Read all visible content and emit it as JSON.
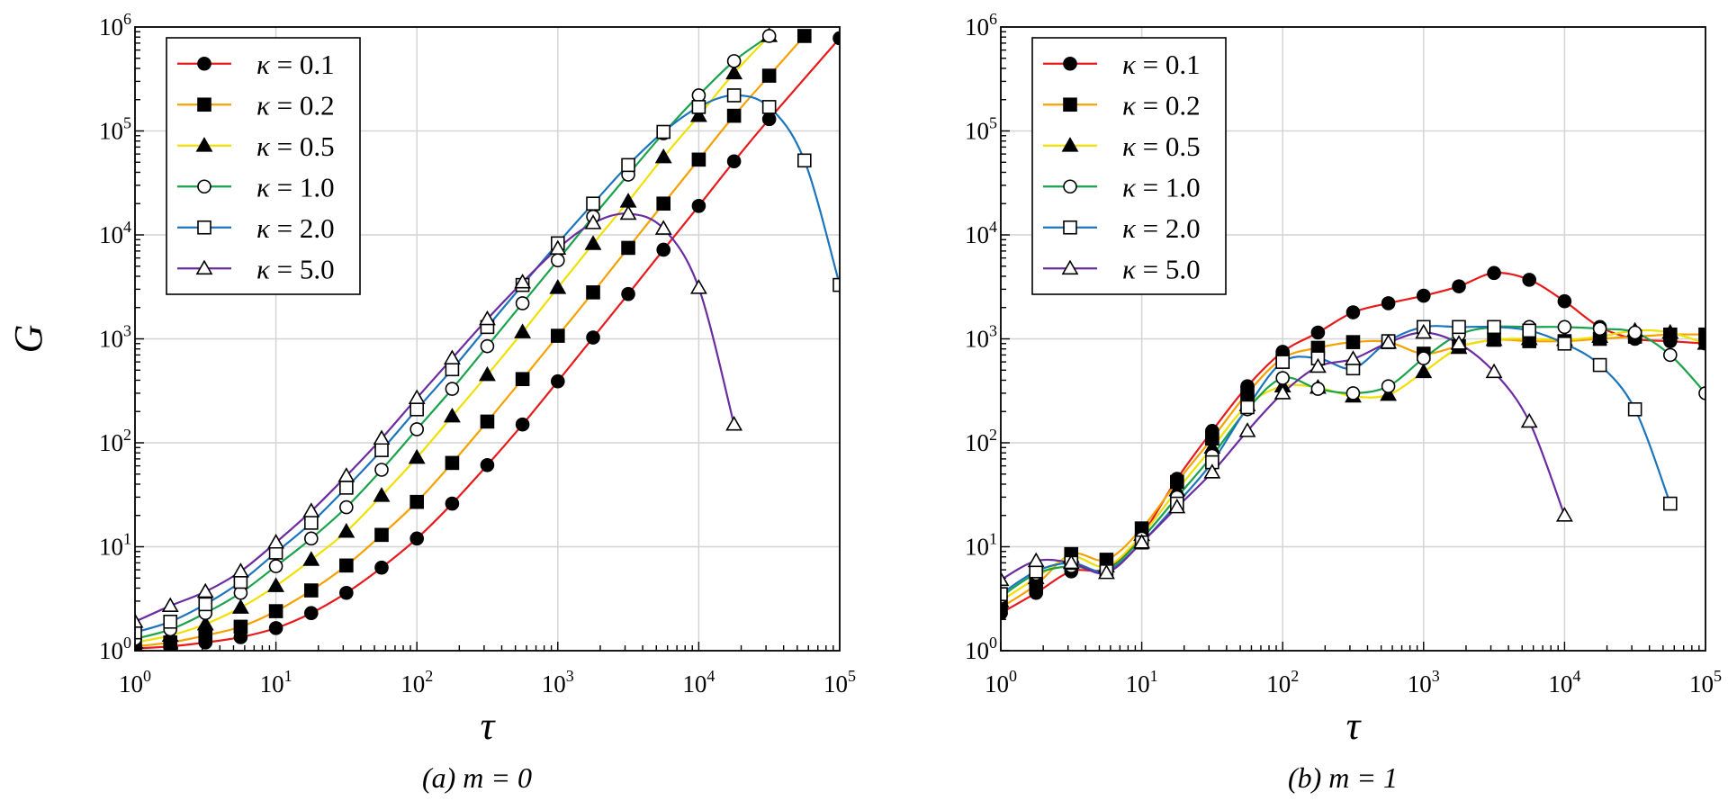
{
  "chart_data": [
    {
      "type": "line",
      "title": "",
      "caption": "(a) m = 0",
      "xlabel": "τ",
      "ylabel": "G",
      "xscale": "log",
      "yscale": "log",
      "xlim": [
        1,
        100000
      ],
      "ylim": [
        1,
        1000000
      ],
      "grid": true,
      "legend_position": "top-left",
      "x_ticks": [
        {
          "base": "10",
          "exp": "0"
        },
        {
          "base": "10",
          "exp": "1"
        },
        {
          "base": "10",
          "exp": "2"
        },
        {
          "base": "10",
          "exp": "3"
        },
        {
          "base": "10",
          "exp": "4"
        },
        {
          "base": "10",
          "exp": "5"
        }
      ],
      "y_ticks": [
        {
          "base": "10",
          "exp": "0"
        },
        {
          "base": "10",
          "exp": "1"
        },
        {
          "base": "10",
          "exp": "2"
        },
        {
          "base": "10",
          "exp": "3"
        },
        {
          "base": "10",
          "exp": "4"
        },
        {
          "base": "10",
          "exp": "5"
        },
        {
          "base": "10",
          "exp": "6"
        }
      ],
      "series": [
        {
          "name": "κ = 0.1",
          "kappa": "κ",
          "value": " = 0.1",
          "color": "#e8191b",
          "marker": "circle-filled",
          "x": [
            1,
            1.78,
            3.16,
            5.62,
            10,
            17.8,
            31.6,
            56.2,
            100,
            178,
            316,
            562,
            1000,
            1780,
            3160,
            5620,
            10000,
            17800,
            31600,
            100000
          ],
          "y": [
            1.05,
            1.1,
            1.2,
            1.35,
            1.65,
            2.3,
            3.6,
            6.3,
            12,
            26,
            61,
            150,
            390,
            1030,
            2700,
            7200,
            19000,
            51000,
            130000,
            780000
          ]
        },
        {
          "name": "κ = 0.2",
          "kappa": "κ",
          "value": " = 0.2",
          "color": "#f5a100",
          "marker": "square-filled",
          "x": [
            1,
            1.78,
            3.16,
            5.62,
            10,
            17.8,
            31.6,
            56.2,
            100,
            178,
            316,
            562,
            1000,
            1780,
            3160,
            5620,
            10000,
            17800,
            31600,
            56200
          ],
          "y": [
            1.1,
            1.2,
            1.4,
            1.7,
            2.4,
            3.8,
            6.6,
            13,
            27,
            64,
            160,
            410,
            1070,
            2800,
            7500,
            20000,
            53000,
            140000,
            340000,
            820000
          ]
        },
        {
          "name": "κ = 0.5",
          "kappa": "κ",
          "value": " = 0.5",
          "color": "#f0e000",
          "marker": "triangle-filled",
          "x": [
            1,
            1.78,
            3.16,
            5.62,
            10,
            17.8,
            31.6,
            56.2,
            100,
            178,
            316,
            562,
            1000,
            1780,
            3160,
            5620,
            10000,
            17800,
            31600
          ],
          "y": [
            1.2,
            1.4,
            1.8,
            2.6,
            4.2,
            7.5,
            14,
            31,
            72,
            180,
            450,
            1160,
            3100,
            8200,
            21000,
            56000,
            140000,
            360000,
            820000
          ]
        },
        {
          "name": "κ = 1.0",
          "kappa": "κ",
          "value": " = 1.0",
          "color": "#1aa34a",
          "marker": "circle-open",
          "x": [
            1,
            1.78,
            3.16,
            5.62,
            10,
            17.8,
            31.6,
            56.2,
            100,
            178,
            316,
            562,
            1000,
            1780,
            3160,
            5620,
            10000,
            17800,
            31600
          ],
          "y": [
            1.3,
            1.6,
            2.3,
            3.6,
            6.5,
            12,
            24,
            55,
            135,
            330,
            850,
            2200,
            5700,
            15000,
            38000,
            95000,
            220000,
            470000,
            820000
          ]
        },
        {
          "name": "κ = 2.0",
          "kappa": "κ",
          "value": " = 2.0",
          "color": "#1c75bc",
          "marker": "square-open",
          "x": [
            1,
            1.78,
            3.16,
            5.62,
            10,
            17.8,
            31.6,
            56.2,
            100,
            178,
            316,
            562,
            1000,
            1780,
            3160,
            5620,
            10000,
            17800,
            31600,
            56200,
            100000
          ],
          "y": [
            1.5,
            1.9,
            2.8,
            4.6,
            8.8,
            17,
            37,
            85,
            210,
            510,
            1300,
            3300,
            8300,
            20000,
            47000,
            98000,
            170000,
            220000,
            170000,
            52000,
            3300
          ]
        },
        {
          "name": "κ = 5.0",
          "kappa": "κ",
          "value": " = 5.0",
          "color": "#6a2ca0",
          "marker": "triangle-open",
          "x": [
            1,
            1.78,
            3.16,
            5.62,
            10,
            17.8,
            31.6,
            56.2,
            100,
            178,
            316,
            562,
            1000,
            1780,
            3160,
            5620,
            10000,
            17800
          ],
          "y": [
            1.9,
            2.7,
            3.7,
            5.8,
            11,
            22,
            48,
            110,
            270,
            650,
            1550,
            3500,
            7400,
            13000,
            16000,
            11500,
            3100,
            150
          ]
        }
      ]
    },
    {
      "type": "line",
      "title": "",
      "caption": "(b) m = 1",
      "xlabel": "τ",
      "ylabel": "",
      "xscale": "log",
      "yscale": "log",
      "xlim": [
        1,
        100000
      ],
      "ylim": [
        1,
        1000000
      ],
      "grid": true,
      "legend_position": "top-left",
      "x_ticks": [
        {
          "base": "10",
          "exp": "0"
        },
        {
          "base": "10",
          "exp": "1"
        },
        {
          "base": "10",
          "exp": "2"
        },
        {
          "base": "10",
          "exp": "3"
        },
        {
          "base": "10",
          "exp": "4"
        },
        {
          "base": "10",
          "exp": "5"
        }
      ],
      "y_ticks": [
        {
          "base": "10",
          "exp": "0"
        },
        {
          "base": "10",
          "exp": "1"
        },
        {
          "base": "10",
          "exp": "2"
        },
        {
          "base": "10",
          "exp": "3"
        },
        {
          "base": "10",
          "exp": "4"
        },
        {
          "base": "10",
          "exp": "5"
        },
        {
          "base": "10",
          "exp": "6"
        }
      ],
      "series": [
        {
          "name": "κ = 0.1",
          "kappa": "κ",
          "value": " = 0.1",
          "color": "#e8191b",
          "marker": "circle-filled",
          "x": [
            1,
            1.78,
            3.16,
            5.62,
            10,
            17.8,
            31.6,
            56.2,
            100,
            178,
            316,
            562,
            1000,
            1780,
            3160,
            5620,
            10000,
            17800,
            31600,
            56200,
            100000
          ],
          "y": [
            2.3,
            3.6,
            5.8,
            6.2,
            13,
            45,
            130,
            350,
            750,
            1150,
            1800,
            2200,
            2600,
            3200,
            4300,
            3700,
            2300,
            1300,
            1000,
            950,
            900
          ]
        },
        {
          "name": "κ = 0.2",
          "kappa": "κ",
          "value": " = 0.2",
          "color": "#f5a100",
          "marker": "square-filled",
          "x": [
            1,
            1.78,
            3.16,
            5.62,
            10,
            17.8,
            31.6,
            56.2,
            100,
            178,
            316,
            562,
            1000,
            1780,
            3160,
            5620,
            10000,
            17800,
            31600,
            56200,
            100000
          ],
          "y": [
            2.6,
            4.3,
            8.5,
            7.5,
            15,
            42,
            110,
            300,
            650,
            820,
            930,
            930,
            720,
            850,
            980,
            950,
            950,
            1000,
            1050,
            1100,
            1100
          ]
        },
        {
          "name": "κ = 0.5",
          "kappa": "κ",
          "value": " = 0.5",
          "color": "#f0e000",
          "marker": "triangle-filled",
          "x": [
            1,
            1.78,
            3.16,
            5.62,
            10,
            17.8,
            31.6,
            56.2,
            100,
            178,
            316,
            562,
            1000,
            1780,
            3160,
            5620,
            10000,
            17800,
            31600,
            56200,
            100000
          ],
          "y": [
            3.0,
            5.0,
            8.0,
            6.5,
            13,
            35,
            90,
            230,
            350,
            340,
            280,
            290,
            480,
            820,
            980,
            1000,
            980,
            1050,
            1200,
            1150,
            900
          ]
        },
        {
          "name": "κ = 1.0",
          "kappa": "κ",
          "value": " = 1.0",
          "color": "#1aa34a",
          "marker": "circle-open",
          "x": [
            1,
            1.78,
            3.16,
            5.62,
            10,
            17.8,
            31.6,
            56.2,
            100,
            178,
            316,
            562,
            1000,
            1780,
            3160,
            5620,
            10000,
            17800,
            31600,
            56200,
            100000
          ],
          "y": [
            3.3,
            5.5,
            6.5,
            6.0,
            12,
            30,
            75,
            210,
            420,
            330,
            300,
            350,
            650,
            1100,
            1300,
            1300,
            1300,
            1250,
            1150,
            700,
            300
          ]
        },
        {
          "name": "κ = 2.0",
          "kappa": "κ",
          "value": " = 2.0",
          "color": "#1c75bc",
          "marker": "square-open",
          "x": [
            1,
            1.78,
            3.16,
            5.62,
            10,
            17.8,
            31.6,
            56.2,
            100,
            178,
            316,
            562,
            1000,
            1780,
            3160,
            5620,
            10000,
            17800,
            31600,
            56200
          ],
          "y": [
            3.5,
            5.8,
            7.0,
            5.8,
            11,
            26,
            65,
            220,
            600,
            650,
            520,
            950,
            1300,
            1300,
            1300,
            1200,
            900,
            560,
            210,
            26
          ]
        },
        {
          "name": "κ = 5.0",
          "kappa": "κ",
          "value": " = 5.0",
          "color": "#6a2ca0",
          "marker": "triangle-open",
          "x": [
            1,
            1.78,
            3.16,
            5.62,
            10,
            17.8,
            31.6,
            56.2,
            100,
            178,
            316,
            562,
            1000,
            1780,
            3160,
            5620,
            10000
          ],
          "y": [
            4.8,
            7.3,
            7.0,
            5.6,
            11,
            24,
            52,
            130,
            300,
            540,
            640,
            920,
            1150,
            900,
            480,
            160,
            20
          ]
        }
      ]
    }
  ]
}
